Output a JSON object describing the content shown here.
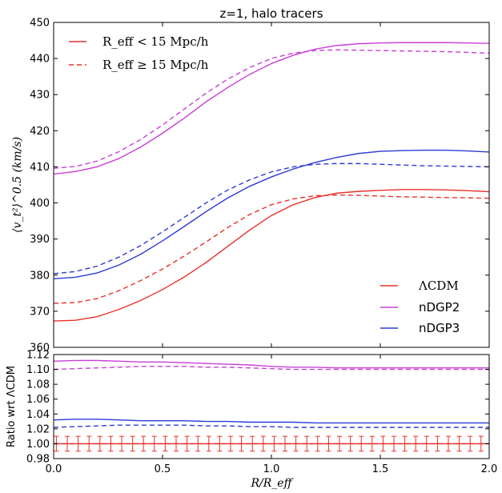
{
  "chart_data": [
    {
      "type": "line",
      "title": "z=1, halo tracers",
      "xlabel": "",
      "ylabel": "⟨v_t²⟩^0.5 (km/s)",
      "xlim": [
        0,
        2
      ],
      "ylim": [
        360,
        450
      ],
      "xticks": [
        "0.0",
        "0.5",
        "1.0",
        "1.5",
        "2.0"
      ],
      "yticks": [
        "360",
        "370",
        "380",
        "390",
        "400",
        "410",
        "420",
        "430",
        "440",
        "450"
      ],
      "legend_style": [
        {
          "label": "R_eff < 15 Mpc/h",
          "style": "solid"
        },
        {
          "label": "R_eff ≥ 15 Mpc/h",
          "style": "dashed"
        }
      ],
      "legend_models": [
        {
          "label": "ΛCDM",
          "color": "#e8312a"
        },
        {
          "label": "nDGP2",
          "color": "#c93fd6"
        },
        {
          "label": "nDGP3",
          "color": "#2f3bd6"
        }
      ],
      "x": [
        0,
        0.1,
        0.2,
        0.3,
        0.4,
        0.5,
        0.6,
        0.7,
        0.8,
        0.9,
        1.0,
        1.1,
        1.2,
        1.3,
        1.4,
        1.5,
        1.6,
        1.7,
        1.8,
        1.9,
        2.0
      ],
      "series": [
        {
          "model": "ΛCDM",
          "style": "solid",
          "color": "#e8312a",
          "values": [
            367.3,
            367.5,
            368.5,
            370.5,
            373,
            376,
            379.5,
            383.5,
            388,
            392.5,
            396.5,
            399.5,
            401.5,
            402.7,
            403.2,
            403.5,
            403.7,
            403.7,
            403.6,
            403.4,
            403.1
          ]
        },
        {
          "model": "ΛCDM",
          "style": "dashed",
          "color": "#e8312a",
          "values": [
            372.2,
            372.4,
            373.5,
            375.7,
            378.5,
            381.7,
            385.3,
            389.2,
            393.2,
            396.8,
            399.5,
            401.1,
            402,
            402.2,
            402.1,
            401.9,
            401.7,
            401.6,
            401.5,
            401.4,
            401.3
          ]
        },
        {
          "model": "nDGP2",
          "style": "solid",
          "color": "#c93fd6",
          "values": [
            408,
            408.7,
            410,
            412.3,
            415.5,
            419.3,
            423.5,
            428,
            432,
            435.6,
            438.6,
            440.9,
            442.6,
            443.6,
            444.1,
            444.3,
            444.4,
            444.4,
            444.4,
            444.3,
            444.2
          ]
        },
        {
          "model": "nDGP2",
          "style": "dashed",
          "color": "#c93fd6",
          "values": [
            409.6,
            410.1,
            411.6,
            414.2,
            417.6,
            421.6,
            426,
            430.4,
            434.3,
            437.5,
            440,
            441.5,
            442.2,
            442.4,
            442.3,
            442.2,
            442.1,
            442,
            441.9,
            441.7,
            441.5
          ]
        },
        {
          "model": "nDGP3",
          "style": "solid",
          "color": "#2f3bd6",
          "values": [
            379,
            379.4,
            380.6,
            382.8,
            385.8,
            389.5,
            393.5,
            397.6,
            401.4,
            404.6,
            407.2,
            409.4,
            411.2,
            412.6,
            413.7,
            414.3,
            414.5,
            414.6,
            414.6,
            414.4,
            414.1
          ]
        },
        {
          "model": "nDGP3",
          "style": "dashed",
          "color": "#2f3bd6",
          "values": [
            380.4,
            381,
            382.5,
            385,
            388.2,
            392,
            396,
            400,
            403.6,
            406.4,
            408.6,
            410,
            410.7,
            410.9,
            410.9,
            410.7,
            410.5,
            410.3,
            410.2,
            410.1,
            410
          ]
        }
      ]
    },
    {
      "type": "line",
      "title": "",
      "xlabel": "R/R_eff",
      "ylabel": "Ratio wrt ΛCDM",
      "xlim": [
        0,
        2
      ],
      "ylim": [
        0.98,
        1.12
      ],
      "xticks": [
        "0.0",
        "0.5",
        "1.0",
        "1.5",
        "2.0"
      ],
      "yticks": [
        "0.98",
        "1.00",
        "1.02",
        "1.04",
        "1.06",
        "1.08",
        "1.10",
        "1.12"
      ],
      "x": [
        0,
        0.1,
        0.2,
        0.3,
        0.4,
        0.5,
        0.6,
        0.7,
        0.8,
        0.9,
        1.0,
        1.1,
        1.2,
        1.3,
        1.4,
        1.5,
        1.6,
        1.7,
        1.8,
        1.9,
        2.0
      ],
      "series": [
        {
          "model": "nDGP2",
          "style": "solid",
          "color": "#c93fd6",
          "values": [
            1.111,
            1.112,
            1.112,
            1.111,
            1.11,
            1.11,
            1.109,
            1.108,
            1.107,
            1.106,
            1.104,
            1.103,
            1.103,
            1.102,
            1.102,
            1.102,
            1.102,
            1.102,
            1.102,
            1.102,
            1.102
          ]
        },
        {
          "model": "nDGP2",
          "style": "dashed",
          "color": "#c93fd6",
          "values": [
            1.1,
            1.101,
            1.102,
            1.103,
            1.104,
            1.104,
            1.104,
            1.103,
            1.103,
            1.102,
            1.101,
            1.1,
            1.1,
            1.1,
            1.1,
            1.1,
            1.1,
            1.1,
            1.1,
            1.1,
            1.1
          ]
        },
        {
          "model": "nDGP3",
          "style": "solid",
          "color": "#2f3bd6",
          "values": [
            1.032,
            1.033,
            1.033,
            1.032,
            1.031,
            1.031,
            1.031,
            1.03,
            1.03,
            1.029,
            1.029,
            1.029,
            1.028,
            1.028,
            1.028,
            1.028,
            1.028,
            1.028,
            1.028,
            1.028,
            1.028
          ]
        },
        {
          "model": "nDGP3",
          "style": "dashed",
          "color": "#2f3bd6",
          "values": [
            1.022,
            1.023,
            1.024,
            1.025,
            1.025,
            1.025,
            1.025,
            1.024,
            1.024,
            1.023,
            1.023,
            1.022,
            1.022,
            1.022,
            1.022,
            1.022,
            1.022,
            1.022,
            1.022,
            1.022,
            1.022
          ]
        },
        {
          "model": "ΛCDM",
          "style": "solid",
          "color": "#e8312a",
          "values": [
            1,
            1,
            1,
            1,
            1,
            1,
            1,
            1,
            1,
            1,
            1,
            1,
            1,
            1,
            1,
            1,
            1,
            1,
            1,
            1,
            1
          ]
        },
        {
          "model": "ΛCDM",
          "style": "dashed",
          "color": "#e8312a",
          "values": [
            1,
            1,
            1,
            1,
            1,
            1,
            1,
            1,
            1,
            1,
            1,
            1,
            1,
            1,
            1,
            1,
            1,
            1,
            1,
            1,
            1
          ]
        }
      ],
      "errorbars": {
        "color": "#e8312a",
        "x": [
          0.0125,
          0.0625,
          0.1125,
          0.1625,
          0.2125,
          0.2625,
          0.3125,
          0.3625,
          0.4125,
          0.4625,
          0.5125,
          0.5625,
          0.6125,
          0.6625,
          0.7125,
          0.7625,
          0.8125,
          0.8625,
          0.9125,
          0.9625,
          1.0125,
          1.0625,
          1.1125,
          1.1625,
          1.2125,
          1.2625,
          1.3125,
          1.3625,
          1.4125,
          1.4625,
          1.5125,
          1.5625,
          1.6125,
          1.6625,
          1.7125,
          1.7625,
          1.8125,
          1.8625,
          1.9125,
          1.9625
        ],
        "center": 1.0,
        "half_width": 0.01
      }
    }
  ]
}
